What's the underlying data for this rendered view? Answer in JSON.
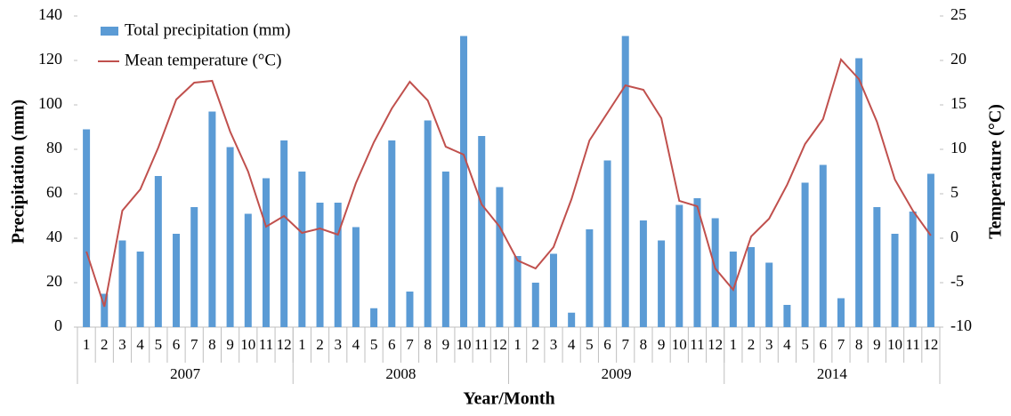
{
  "chart_data": {
    "type": "bar",
    "x_label": "Year/Month",
    "y_label": "Precipitation (mm)",
    "y2_label": "Temperature (°C)",
    "categories": [
      "1",
      "2",
      "3",
      "4",
      "5",
      "6",
      "7",
      "8",
      "9",
      "10",
      "11",
      "12",
      "1",
      "2",
      "3",
      "4",
      "5",
      "6",
      "7",
      "8",
      "9",
      "10",
      "11",
      "12",
      "1",
      "2",
      "3",
      "4",
      "5",
      "6",
      "7",
      "8",
      "9",
      "10",
      "11",
      "12",
      "1",
      "2",
      "3",
      "4",
      "5",
      "6",
      "7",
      "8",
      "9",
      "10",
      "11",
      "12"
    ],
    "years": [
      "2007",
      "2008",
      "2009",
      "2014"
    ],
    "series": [
      {
        "name": "Total precipitation (mm)",
        "type": "bar",
        "color": "#5b9bd5",
        "values": [
          89,
          15,
          39,
          34,
          68,
          42,
          54,
          97,
          81,
          51,
          67,
          84,
          70,
          56,
          56,
          45,
          8.5,
          84,
          16,
          93,
          70,
          131,
          86,
          63,
          32,
          20,
          33,
          6.5,
          44,
          75,
          131,
          48,
          39,
          55,
          58,
          49,
          34,
          36,
          29,
          10,
          65,
          73,
          13,
          121,
          54,
          42,
          52,
          69
        ]
      },
      {
        "name": "Mean temperature (°C)",
        "type": "line",
        "axis": "y2",
        "color": "#c0504d",
        "values": [
          -1.5,
          -7.7,
          3.1,
          5.5,
          10.2,
          15.6,
          17.5,
          17.7,
          12,
          7.5,
          1.3,
          2.5,
          0.6,
          1.1,
          0.4,
          6.2,
          10.8,
          14.6,
          17.6,
          15.5,
          10.3,
          9.4,
          3.8,
          1.3,
          -2.5,
          -3.4,
          -1,
          4.4,
          11,
          14.1,
          17.2,
          16.7,
          13.5,
          4.2,
          3.6,
          -3.4,
          -5.8,
          0.2,
          2.2,
          6,
          10.6,
          13.4,
          20.1,
          17.9,
          13.1,
          6.6,
          3.1,
          0.3
        ]
      }
    ],
    "ylim": [
      0,
      140
    ],
    "yticks": [
      0,
      20,
      40,
      60,
      80,
      100,
      120,
      140
    ],
    "y2lim": [
      -10,
      25
    ],
    "y2ticks": [
      -10,
      -5,
      0,
      5,
      10,
      15,
      20,
      25
    ],
    "legend": "top-left"
  }
}
